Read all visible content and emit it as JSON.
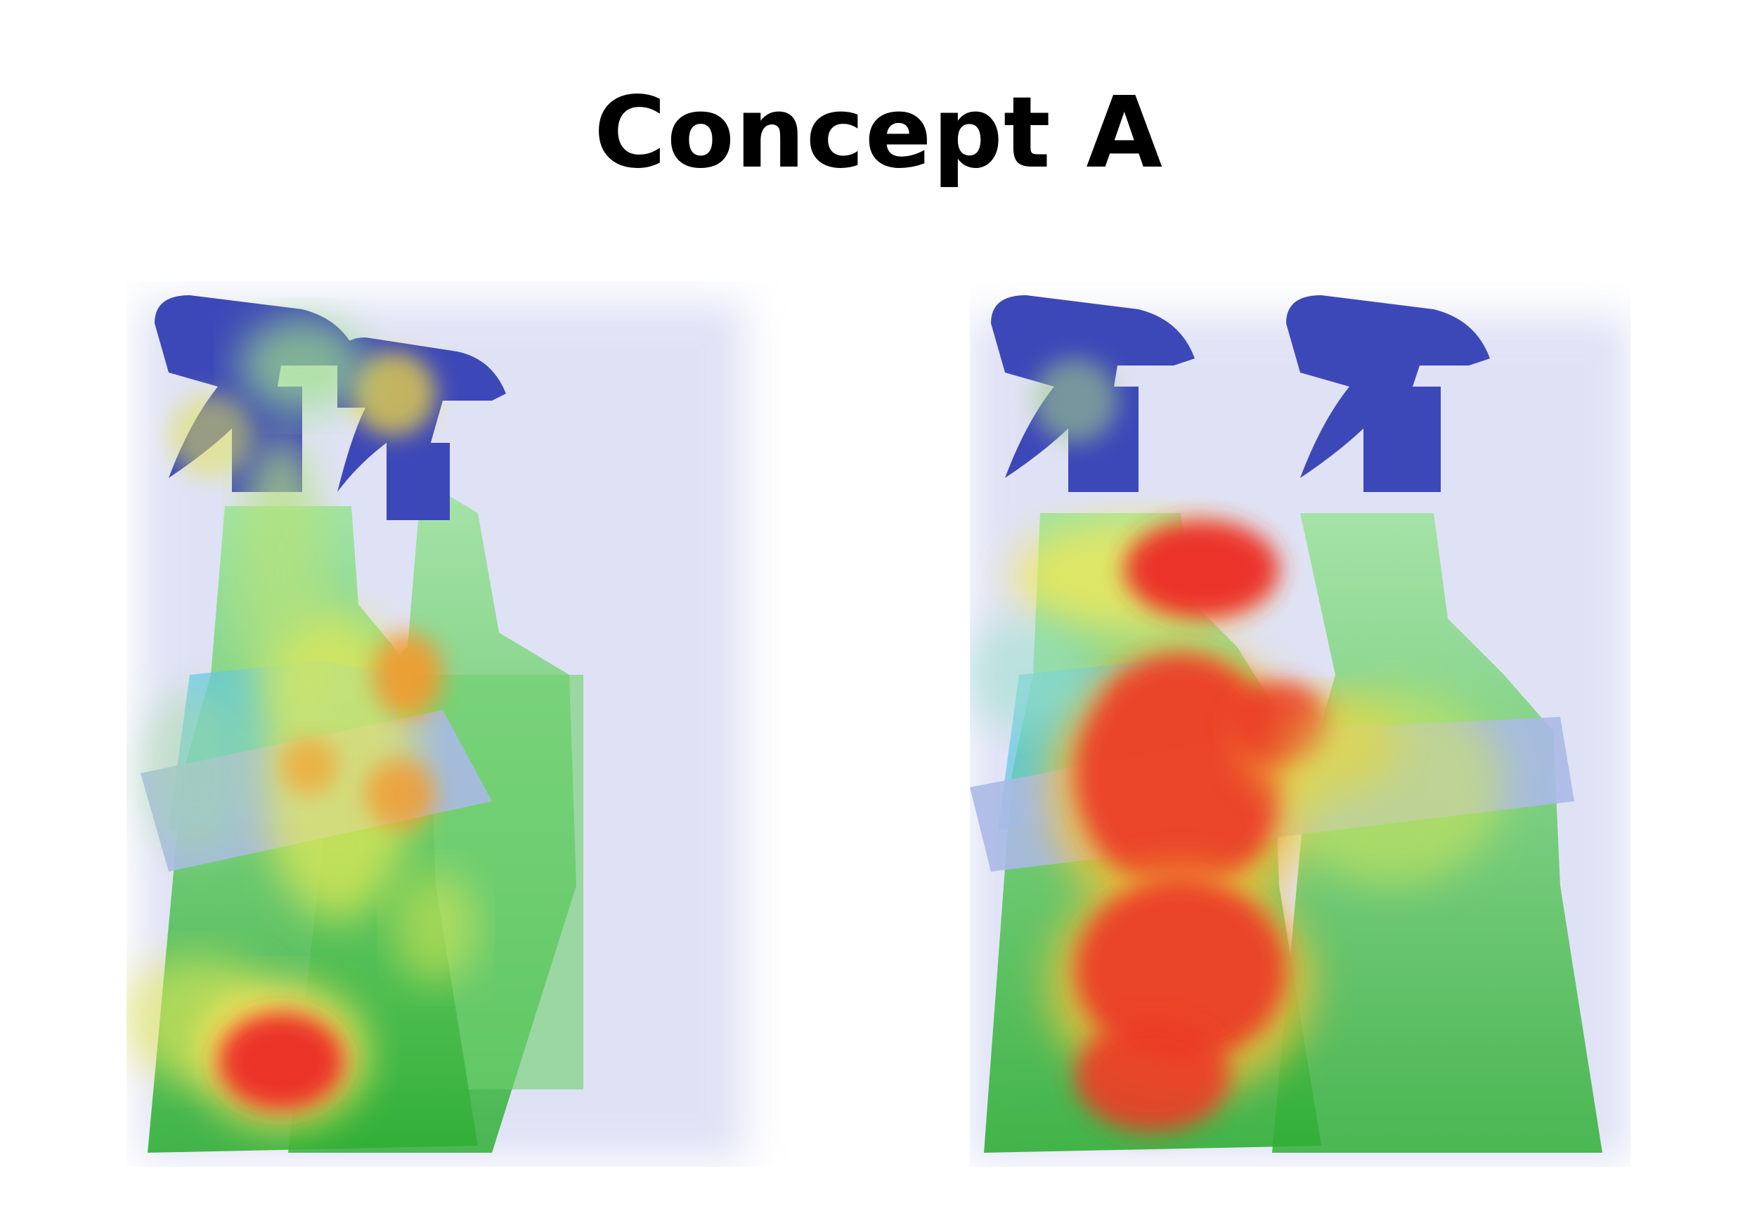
{
  "title": "Concept A",
  "colors": {
    "cap": "#3d48b8",
    "cap_dark": "#2a318a",
    "neck_liquid": "#5fc8e6",
    "bottle_green": "#38b53a",
    "bottle_light": "#8be08a",
    "label_band": "#aab9e6",
    "heat_low": "#b9bde6",
    "heat_mid": "#fff34a",
    "heat_high": "#ec2a25"
  },
  "panels": [
    {
      "name": "heatmap-left",
      "intensity": "scattered"
    },
    {
      "name": "heatmap-right",
      "intensity": "concentrated"
    }
  ]
}
